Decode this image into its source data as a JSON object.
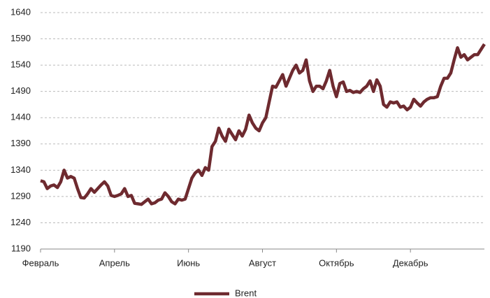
{
  "chart_data": {
    "type": "line",
    "categories": [
      "Февраль",
      null,
      null,
      null,
      null,
      null,
      null,
      null,
      null,
      null,
      null,
      null,
      null,
      null,
      null,
      null,
      null,
      null,
      null,
      null,
      null,
      null,
      "Апрель",
      null,
      null,
      null,
      null,
      null,
      null,
      null,
      null,
      null,
      null,
      null,
      null,
      null,
      null,
      null,
      null,
      null,
      null,
      null,
      null,
      null,
      "Июнь",
      null,
      null,
      null,
      null,
      null,
      null,
      null,
      null,
      null,
      null,
      null,
      null,
      null,
      null,
      null,
      null,
      null,
      null,
      null,
      null,
      null,
      "Август",
      null,
      null,
      null,
      null,
      null,
      null,
      null,
      null,
      null,
      null,
      null,
      null,
      null,
      null,
      null,
      null,
      null,
      null,
      null,
      null,
      null,
      "Октябрь",
      null,
      null,
      null,
      null,
      null,
      null,
      null,
      null,
      null,
      null,
      null,
      null,
      null,
      null,
      null,
      null,
      null,
      null,
      null,
      null,
      null,
      "Декабрь",
      null,
      null,
      null,
      null,
      null,
      null,
      null,
      null,
      null,
      null,
      null,
      null,
      null,
      null,
      null,
      null,
      null,
      null,
      null,
      null,
      null,
      null
    ],
    "series": [
      {
        "name": "Brent",
        "color": "#6e2a2f",
        "values": [
          1320,
          1318,
          1305,
          1310,
          1312,
          1307,
          1318,
          1340,
          1325,
          1328,
          1325,
          1305,
          1288,
          1287,
          1295,
          1305,
          1298,
          1305,
          1312,
          1318,
          1310,
          1292,
          1290,
          1292,
          1295,
          1305,
          1290,
          1292,
          1277,
          1276,
          1275,
          1280,
          1285,
          1276,
          1278,
          1283,
          1285,
          1297,
          1290,
          1280,
          1276,
          1285,
          1283,
          1285,
          1305,
          1325,
          1335,
          1340,
          1330,
          1345,
          1340,
          1385,
          1395,
          1420,
          1405,
          1395,
          1418,
          1408,
          1398,
          1415,
          1405,
          1418,
          1445,
          1430,
          1420,
          1415,
          1430,
          1440,
          1470,
          1500,
          1498,
          1510,
          1522,
          1500,
          1515,
          1530,
          1540,
          1525,
          1530,
          1550,
          1510,
          1490,
          1500,
          1500,
          1495,
          1510,
          1530,
          1500,
          1480,
          1505,
          1508,
          1490,
          1492,
          1488,
          1490,
          1488,
          1495,
          1500,
          1510,
          1490,
          1512,
          1500,
          1465,
          1460,
          1470,
          1468,
          1470,
          1460,
          1462,
          1455,
          1460,
          1475,
          1468,
          1462,
          1470,
          1475,
          1478,
          1478,
          1480,
          1500,
          1515,
          1515,
          1525,
          1550,
          1573,
          1555,
          1560,
          1550,
          1555,
          1560,
          1560,
          1570,
          1580
        ]
      }
    ],
    "ylim": [
      1190,
      1640
    ],
    "yticks": [
      1190,
      1240,
      1290,
      1340,
      1390,
      1440,
      1490,
      1540,
      1590,
      1640
    ],
    "grid": true,
    "legend": "bottom"
  }
}
